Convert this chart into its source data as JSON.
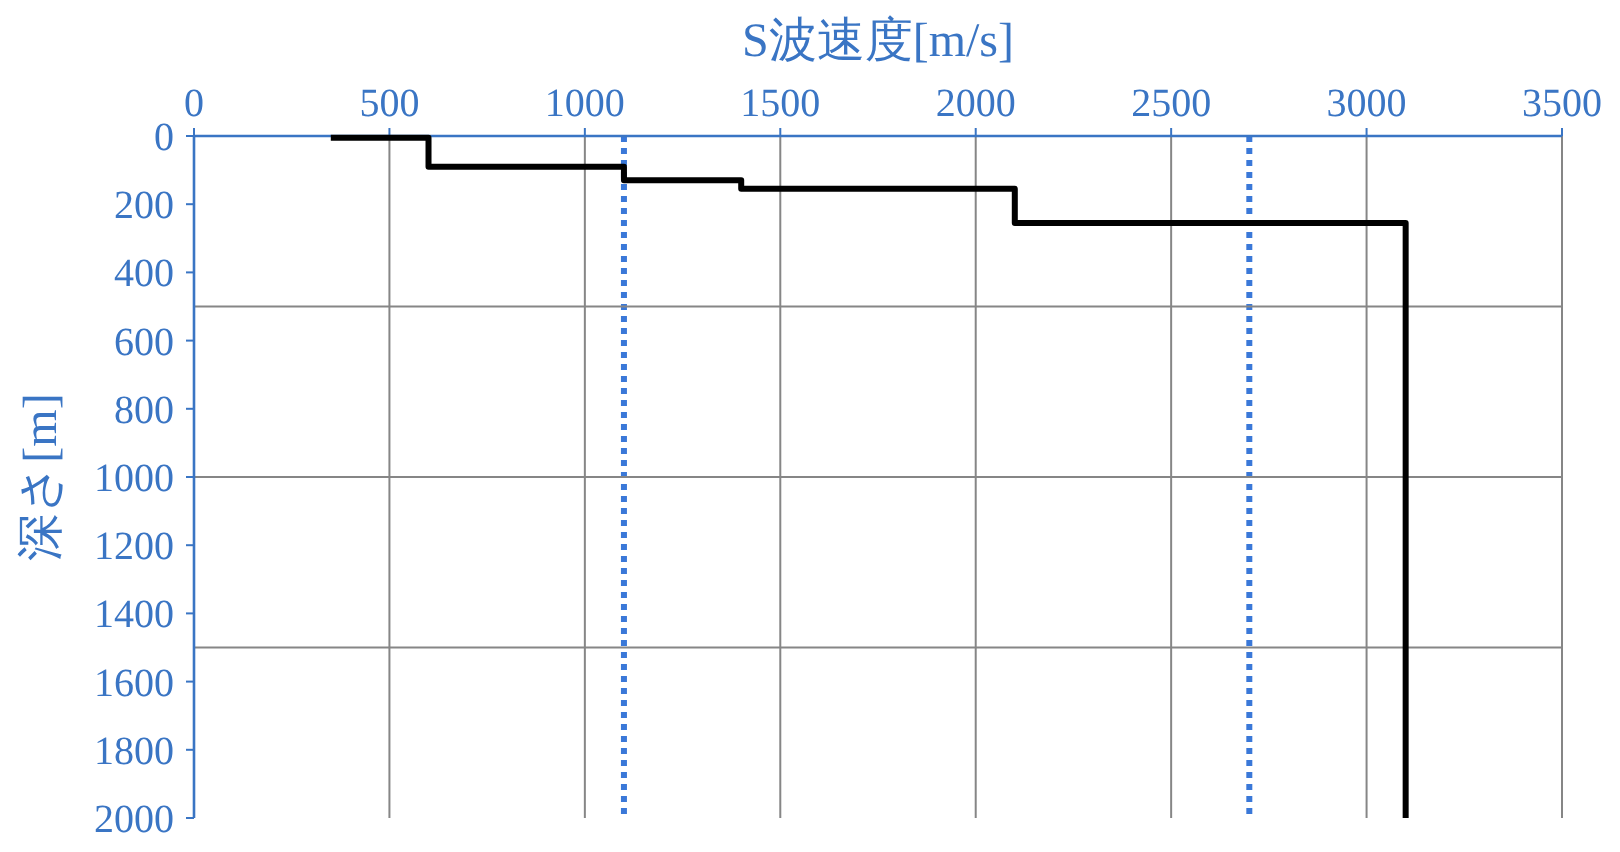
{
  "chart_data": {
    "type": "line",
    "xlabel": "S波速度[m/s]",
    "ylabel": "深さ[m]",
    "xlim": [
      0,
      3500
    ],
    "xticks": [
      0,
      500,
      1000,
      1500,
      2000,
      2500,
      3000,
      3500
    ],
    "ylim": [
      2000,
      0
    ],
    "yticks": [
      0,
      200,
      400,
      600,
      800,
      1000,
      1200,
      1400,
      1600,
      1800,
      2000
    ],
    "grid": "x",
    "marker": "none",
    "line_style": "solid",
    "series": [
      {
        "color": "#000000",
        "x": [
          350,
          600,
          600,
          1100,
          1100,
          1400,
          1400,
          2100,
          2100,
          3100,
          3100
        ],
        "values": [
          5,
          5,
          90,
          90,
          130,
          130,
          155,
          155,
          255,
          255,
          2000
        ]
      }
    ],
    "ref_lines": [
      {
        "axis": "x",
        "value": 1100,
        "color": "#3a78d8",
        "line_style": "dotted"
      },
      {
        "axis": "x",
        "value": 2700,
        "color": "#3a78d8",
        "line_style": "dotted"
      },
      {
        "axis": "y",
        "value": 500,
        "color": "#868686",
        "line_style": "solid"
      },
      {
        "axis": "y",
        "value": 1000,
        "color": "#868686",
        "line_style": "solid"
      },
      {
        "axis": "y",
        "value": 1500,
        "color": "#868686",
        "line_style": "solid"
      }
    ]
  }
}
